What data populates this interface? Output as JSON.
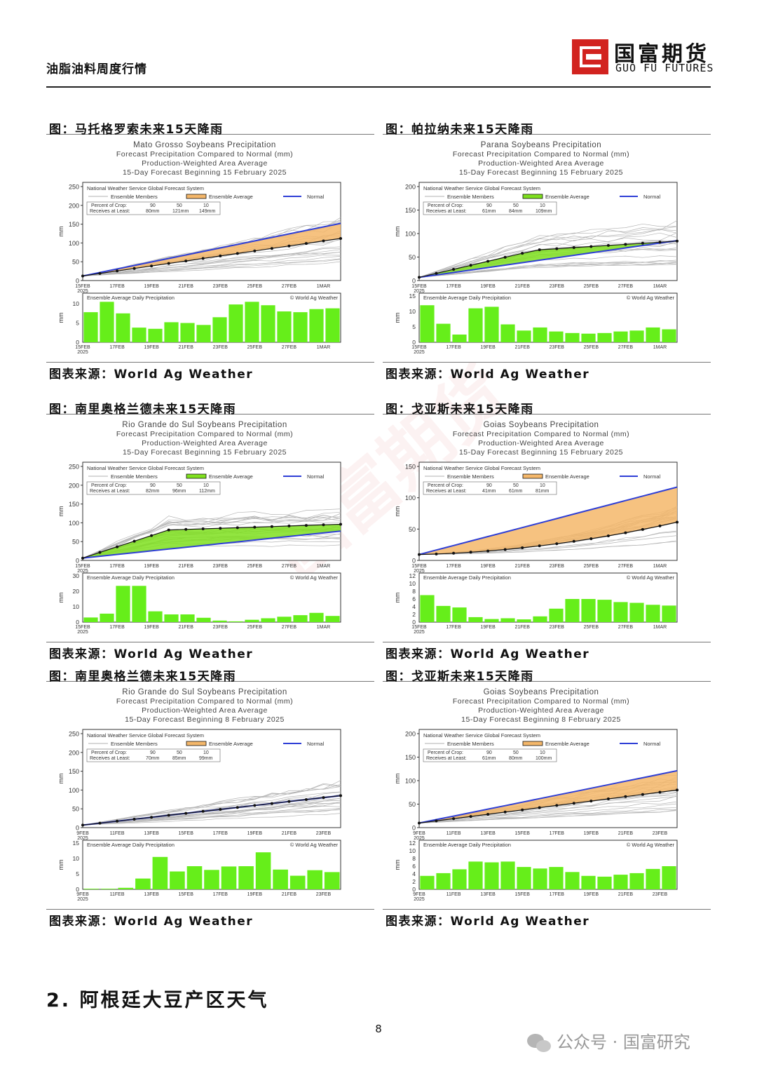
{
  "header": {
    "title": "油脂油料周度行情",
    "logo_cn": "国富期货",
    "logo_en": "GUO FU FUTURES"
  },
  "watermark": "国富期货",
  "figures": [
    {
      "caption": "图：马托格罗索未来15天降雨",
      "source": "图表来源：World Ag Weather",
      "title_lines": [
        "Mato Grosso Soybeans Precipitation",
        "Forecast Precipitation Compared to Normal (mm)",
        "Production-Weighted Area Average",
        "15-Day Forecast Beginning 15 February 2025"
      ],
      "system": "National Weather Service Global Forecast System",
      "legend": {
        "members": "Ensemble Members",
        "average": "Ensemble Average",
        "normal": "Normal"
      },
      "crop_label": "Percent of Crop:",
      "receives_label": "Receives at Least:",
      "crop_pct": [
        "90",
        "50",
        "10"
      ],
      "crop_mm": [
        "80mm",
        "121mm",
        "149mm"
      ],
      "ylabel": "mm",
      "top_ymax": 250,
      "top_yticks": [
        0,
        50,
        100,
        150,
        200,
        250
      ],
      "start_year": "2025",
      "date_ticks": [
        "15FEB",
        "17FEB",
        "19FEB",
        "21FEB",
        "23FEB",
        "25FEB",
        "27FEB",
        "1MAR"
      ],
      "normal_end": 152,
      "avg_end": 112,
      "avg_shape": "steady",
      "fill_color": "#f4b76a",
      "daily_title": "Ensemble Average Daily Precipitation",
      "daily_credit": "© World Ag Weather",
      "daily_ymax": 12,
      "daily_yticks": [
        0,
        5,
        10
      ],
      "daily_values": [
        7.8,
        10.5,
        7.5,
        3.8,
        3.5,
        5.2,
        5,
        4.5,
        6.5,
        9.8,
        10.5,
        9.6,
        8,
        7.8,
        8.6,
        8.8
      ]
    },
    {
      "caption": "图：帕拉纳未来15天降雨",
      "source": "图表来源：World Ag Weather",
      "title_lines": [
        "Parana Soybeans Precipitation",
        "Forecast Precipitation Compared to Normal (mm)",
        "Production-Weighted Area Average",
        "15-Day Forecast Beginning 15 February 2025"
      ],
      "system": "National Weather Service Global Forecast System",
      "legend": {
        "members": "Ensemble Members",
        "average": "Ensemble Average",
        "normal": "Normal"
      },
      "crop_label": "Percent of Crop:",
      "receives_label": "Receives at Least:",
      "crop_pct": [
        "90",
        "50",
        "10"
      ],
      "crop_mm": [
        "61mm",
        "84mm",
        "109mm"
      ],
      "ylabel": "mm",
      "top_ymax": 200,
      "top_yticks": [
        0,
        50,
        100,
        150,
        200
      ],
      "start_year": "2025",
      "date_ticks": [
        "15FEB",
        "17FEB",
        "19FEB",
        "21FEB",
        "23FEB",
        "25FEB",
        "27FEB",
        "1MAR"
      ],
      "normal_end": 85,
      "avg_end": 84,
      "avg_shape": "early",
      "fill_color": "#7fe01e",
      "daily_title": "Ensemble Average Daily Precipitation",
      "daily_credit": "© World Ag Weather",
      "daily_ymax": 15,
      "daily_yticks": [
        0,
        5,
        10,
        15
      ],
      "daily_values": [
        12,
        6,
        2.5,
        11,
        11.5,
        5.8,
        3.8,
        4.8,
        3.5,
        3,
        2.8,
        3,
        3.5,
        3.8,
        4.8,
        4.2
      ]
    },
    {
      "caption": "图：南里奥格兰德未来15天降雨",
      "source": "图表来源：World Ag Weather",
      "title_lines": [
        "Rio Grande do Sul Soybeans Precipitation",
        "Forecast Precipitation Compared to Normal (mm)",
        "Production-Weighted Area Average",
        "15-Day Forecast Beginning 15 February 2025"
      ],
      "system": "National Weather Service Global Forecast System",
      "legend": {
        "members": "Ensemble Members",
        "average": "Ensemble Average",
        "normal": "Normal"
      },
      "crop_label": "Percent of Crop:",
      "receives_label": "Receives at Least:",
      "crop_pct": [
        "90",
        "50",
        "10"
      ],
      "crop_mm": [
        "82mm",
        "96mm",
        "112mm"
      ],
      "ylabel": "mm",
      "top_ymax": 250,
      "top_yticks": [
        0,
        50,
        100,
        150,
        200,
        250
      ],
      "start_year": "2025",
      "date_ticks": [
        "15FEB",
        "17FEB",
        "19FEB",
        "21FEB",
        "23FEB",
        "25FEB",
        "27FEB",
        "1MAR"
      ],
      "normal_end": 78,
      "avg_end": 96,
      "avg_shape": "jump",
      "fill_color": "#7fe01e",
      "daily_title": "Ensemble Average Daily Precipitation",
      "daily_credit": "© World Ag Weather",
      "daily_ymax": 30,
      "daily_yticks": [
        0,
        10,
        20,
        30
      ],
      "daily_values": [
        3,
        5.5,
        23.5,
        23.5,
        7,
        5,
        5,
        2.8,
        1,
        0.5,
        1.5,
        2.5,
        3.5,
        4.5,
        6,
        4
      ]
    },
    {
      "caption": "图：戈亚斯未来15天降雨",
      "source": "图表来源：World Ag Weather",
      "title_lines": [
        "Goias Soybeans Precipitation",
        "Forecast Precipitation Compared to Normal (mm)",
        "Production-Weighted Area Average",
        "15-Day Forecast Beginning 15 February 2025"
      ],
      "system": "National Weather Service Global Forecast System",
      "legend": {
        "members": "Ensemble Members",
        "average": "Ensemble Average",
        "normal": "Normal"
      },
      "crop_label": "Percent of Crop:",
      "receives_label": "Receives at Least:",
      "crop_pct": [
        "90",
        "50",
        "10"
      ],
      "crop_mm": [
        "41mm",
        "61mm",
        "81mm"
      ],
      "ylabel": "mm",
      "top_ymax": 150,
      "top_yticks": [
        0,
        50,
        100,
        150
      ],
      "start_year": "2025",
      "date_ticks": [
        "15FEB",
        "17FEB",
        "19FEB",
        "21FEB",
        "23FEB",
        "25FEB",
        "27FEB",
        "1MAR"
      ],
      "normal_end": 117,
      "avg_end": 61,
      "avg_shape": "late",
      "fill_color": "#f4b76a",
      "daily_title": "Ensemble Average Daily Precipitation",
      "daily_credit": "© World Ag Weather",
      "daily_ymax": 12,
      "daily_yticks": [
        0,
        2,
        4,
        6,
        8,
        10,
        12
      ],
      "daily_values": [
        7,
        4.2,
        3.8,
        1.3,
        0.8,
        1,
        0.7,
        1.5,
        3.5,
        6,
        6,
        5.8,
        5.2,
        5,
        4.5,
        4.3
      ]
    },
    {
      "caption": "图：南里奥格兰德未来15天降雨",
      "source": "图表来源：World Ag Weather",
      "title_lines": [
        "Rio Grande do Sul Soybeans Precipitation",
        "Forecast Precipitation Compared to Normal (mm)",
        "Production-Weighted Area Average",
        "15-Day Forecast Beginning 8 February 2025"
      ],
      "system": "National Weather Service Global Forecast System",
      "legend": {
        "members": "Ensemble Members",
        "average": "Ensemble Average",
        "normal": "Normal"
      },
      "crop_label": "Percent of Crop:",
      "receives_label": "Receives at Least:",
      "crop_pct": [
        "90",
        "50",
        "10"
      ],
      "crop_mm": [
        "70mm",
        "85mm",
        "99mm"
      ],
      "ylabel": "mm",
      "top_ymax": 250,
      "top_yticks": [
        0,
        50,
        100,
        150,
        200,
        250
      ],
      "start_year": "2025",
      "date_ticks": [
        "9FEB",
        "11FEB",
        "13FEB",
        "15FEB",
        "17FEB",
        "19FEB",
        "21FEB",
        "23FEB"
      ],
      "normal_end": 85,
      "avg_end": 85,
      "avg_shape": "steady",
      "fill_color": "#f4b76a",
      "daily_title": "Ensemble Average Daily Precipitation",
      "daily_credit": "© World Ag Weather",
      "daily_ymax": 15,
      "daily_yticks": [
        0,
        5,
        10,
        15
      ],
      "daily_values": [
        0.2,
        0.2,
        0.5,
        3.5,
        10.5,
        5.8,
        7.5,
        6.3,
        7.4,
        7.5,
        12,
        6.4,
        4.4,
        6.2,
        5.6
      ]
    },
    {
      "caption": "图：戈亚斯未来15天降雨",
      "source": "图表来源：World Ag Weather",
      "title_lines": [
        "Goias Soybeans Precipitation",
        "Forecast Precipitation Compared to Normal (mm)",
        "Production-Weighted Area Average",
        "15-Day Forecast Beginning 8 February 2025"
      ],
      "system": "National Weather Service Global Forecast System",
      "legend": {
        "members": "Ensemble Members",
        "average": "Ensemble Average",
        "normal": "Normal"
      },
      "crop_label": "Percent of Crop:",
      "receives_label": "Receives at Least:",
      "crop_pct": [
        "90",
        "50",
        "10"
      ],
      "crop_mm": [
        "61mm",
        "80mm",
        "100mm"
      ],
      "ylabel": "mm",
      "top_ymax": 200,
      "top_yticks": [
        0,
        50,
        100,
        150,
        200
      ],
      "start_year": "2025",
      "date_ticks": [
        "9FEB",
        "11FEB",
        "13FEB",
        "15FEB",
        "17FEB",
        "19FEB",
        "21FEB",
        "23FEB"
      ],
      "normal_end": 121,
      "avg_end": 80,
      "avg_shape": "steady",
      "fill_color": "#f4b76a",
      "daily_title": "Ensemble Average Daily Precipitation",
      "daily_credit": "© World Ag Weather",
      "daily_ymax": 12,
      "daily_yticks": [
        0,
        2,
        4,
        6,
        8,
        10,
        12
      ],
      "daily_values": [
        3.5,
        4.2,
        5.2,
        7.2,
        7,
        7.2,
        5.8,
        5.4,
        5.8,
        4.5,
        3.5,
        3.3,
        3.8,
        4.2,
        5.3,
        6
      ]
    }
  ],
  "section_title": "2. 阿根廷大豆产区天气",
  "page_number": "8",
  "footer_brand": "公众号 · 国富研究"
}
